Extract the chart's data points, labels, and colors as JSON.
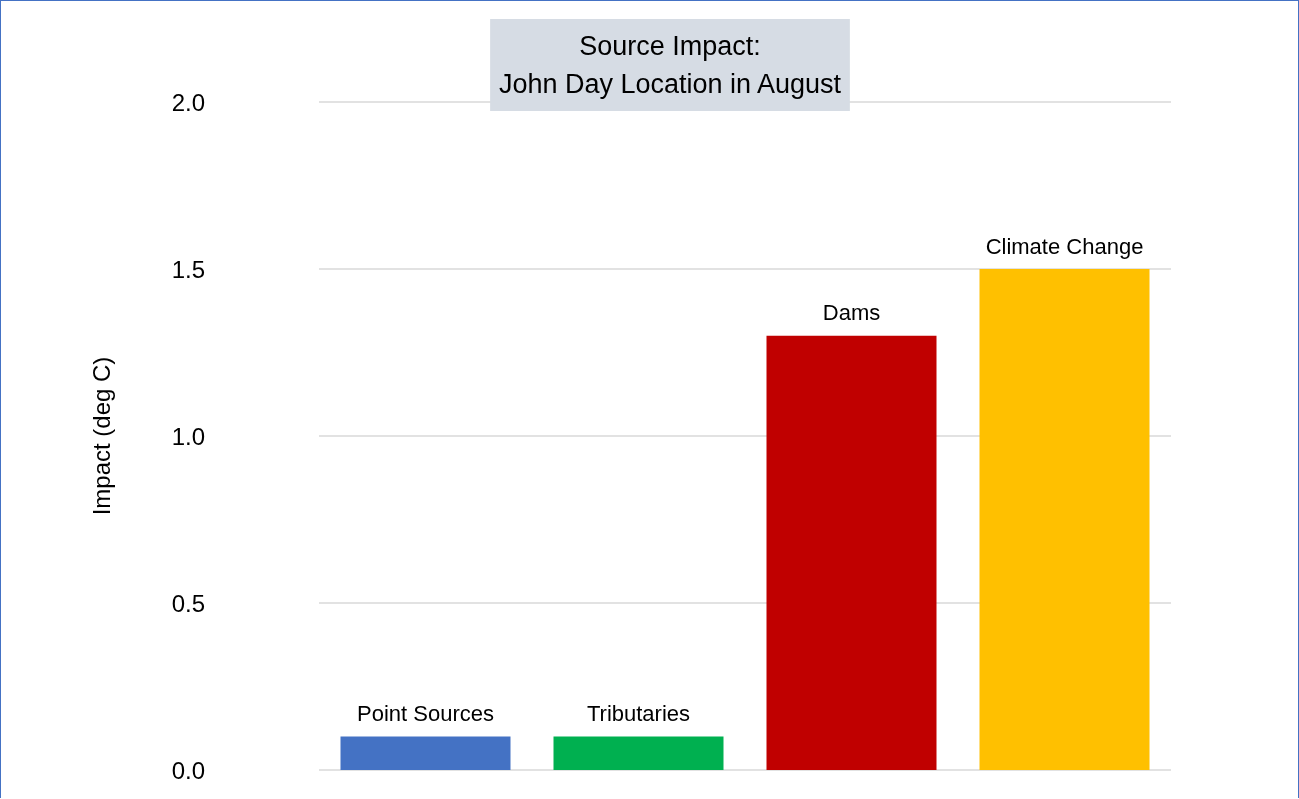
{
  "chart_data": {
    "type": "bar",
    "title": "Source Impact:\nJohn Day Location in August",
    "ylabel": "Impact (deg C)",
    "categories": [
      "Point Sources",
      "Tributaries",
      "Dams",
      "Climate Change"
    ],
    "values": [
      0.1,
      0.1,
      1.3,
      1.5
    ],
    "colors": [
      "#4472c4",
      "#00b050",
      "#c00000",
      "#ffc000"
    ],
    "ylim": [
      0,
      2
    ],
    "yticks": [
      {
        "value": 0,
        "label": "0.0"
      },
      0.5,
      {
        "value": 1,
        "label": "1.0"
      },
      1.5,
      {
        "value": 2,
        "label": "2.0"
      }
    ],
    "grid": "y"
  }
}
